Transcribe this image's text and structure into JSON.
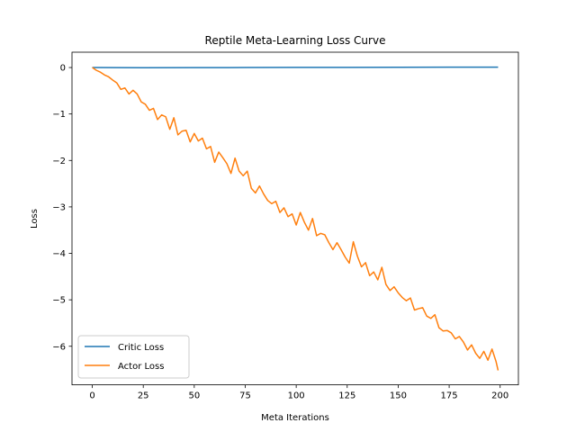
{
  "chart_data": {
    "type": "line",
    "title": "Reptile Meta-Learning Loss Curve",
    "xlabel": "Meta Iterations",
    "ylabel": "Loss",
    "xlim": [
      -9.95,
      208.95
    ],
    "ylim": [
      -6.83,
      0.33
    ],
    "xticks": [
      0,
      25,
      50,
      75,
      100,
      125,
      150,
      175,
      200
    ],
    "yticks": [
      0,
      -1,
      -2,
      -3,
      -4,
      -5,
      -6
    ],
    "grid": false,
    "legend_position": "lower-left",
    "series": [
      {
        "name": "Critic Loss",
        "color": "#1f77b4",
        "x": [
          0,
          25,
          50,
          75,
          100,
          125,
          150,
          175,
          199
        ],
        "values": [
          0.0,
          -0.003,
          -0.002,
          0.0,
          0.002,
          0.004,
          0.006,
          0.007,
          0.008
        ]
      },
      {
        "name": "Actor Loss",
        "color": "#ff7f0e",
        "x": [
          0,
          2,
          4,
          6,
          8,
          10,
          12,
          14,
          16,
          18,
          20,
          22,
          24,
          26,
          28,
          30,
          32,
          34,
          36,
          38,
          40,
          42,
          44,
          46,
          48,
          50,
          52,
          54,
          56,
          58,
          60,
          62,
          64,
          66,
          68,
          70,
          72,
          74,
          76,
          78,
          80,
          82,
          84,
          86,
          88,
          90,
          92,
          94,
          96,
          98,
          100,
          102,
          104,
          106,
          108,
          110,
          112,
          114,
          116,
          118,
          120,
          122,
          124,
          126,
          128,
          130,
          132,
          134,
          136,
          138,
          140,
          142,
          144,
          146,
          148,
          150,
          152,
          154,
          156,
          158,
          160,
          162,
          164,
          166,
          168,
          170,
          172,
          174,
          176,
          178,
          180,
          182,
          184,
          186,
          188,
          190,
          192,
          194,
          196,
          198,
          199
        ],
        "values": [
          0.0,
          -0.06,
          -0.1,
          -0.16,
          -0.2,
          -0.27,
          -0.33,
          -0.47,
          -0.44,
          -0.57,
          -0.49,
          -0.57,
          -0.74,
          -0.79,
          -0.92,
          -0.88,
          -1.12,
          -1.02,
          -1.06,
          -1.33,
          -1.08,
          -1.45,
          -1.37,
          -1.35,
          -1.6,
          -1.42,
          -1.58,
          -1.52,
          -1.75,
          -1.7,
          -2.04,
          -1.82,
          -1.94,
          -2.07,
          -2.28,
          -1.95,
          -2.23,
          -2.33,
          -2.23,
          -2.6,
          -2.7,
          -2.55,
          -2.72,
          -2.86,
          -2.93,
          -2.88,
          -3.12,
          -3.02,
          -3.21,
          -3.15,
          -3.39,
          -3.12,
          -3.33,
          -3.5,
          -3.25,
          -3.62,
          -3.57,
          -3.6,
          -3.77,
          -3.92,
          -3.77,
          -3.92,
          -4.08,
          -4.21,
          -3.75,
          -4.06,
          -4.29,
          -4.2,
          -4.48,
          -4.4,
          -4.57,
          -4.3,
          -4.67,
          -4.8,
          -4.72,
          -4.85,
          -4.95,
          -5.02,
          -4.96,
          -5.22,
          -5.19,
          -5.17,
          -5.35,
          -5.4,
          -5.32,
          -5.6,
          -5.67,
          -5.66,
          -5.71,
          -5.84,
          -5.79,
          -5.91,
          -6.08,
          -5.97,
          -6.15,
          -6.26,
          -6.11,
          -6.3,
          -6.06,
          -6.33,
          -6.52
        ]
      }
    ]
  }
}
